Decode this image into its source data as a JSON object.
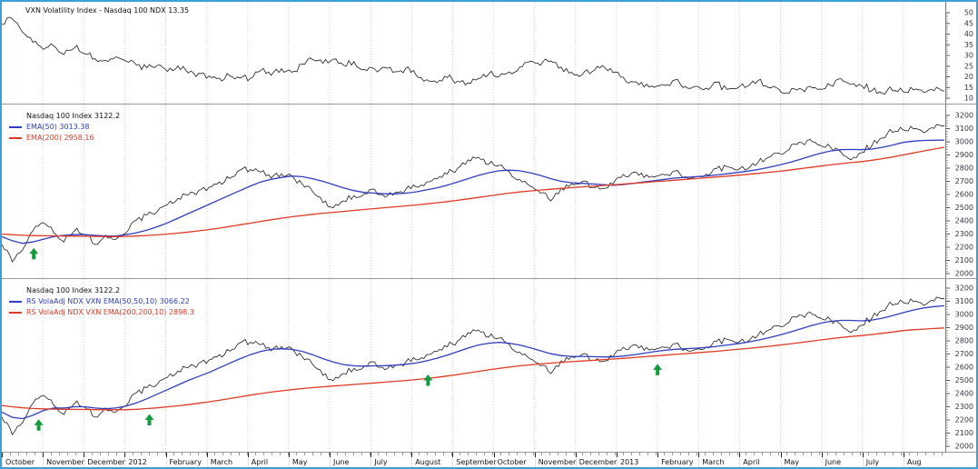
{
  "colors": {
    "border": "#3aa2d8",
    "grid": "#c8cbd0",
    "price": "#1a1a1a",
    "ema_fast": "#2e3fc0",
    "ema_slow": "#e03a25",
    "signal": "#169a3e",
    "axis_text": "#333344"
  },
  "x_axis": {
    "labels": [
      "October",
      "November",
      "December",
      "2012",
      "February",
      "March",
      "April",
      "May",
      "June",
      "July",
      "August",
      "September",
      "October",
      "November",
      "December",
      "2013",
      "February",
      "March",
      "April",
      "May",
      "June",
      "July",
      "Aug"
    ]
  },
  "chart_data": [
    {
      "id": "vxn-volatility",
      "type": "line",
      "title": "VXN Volatility Index - Nasdaq 100 NDX 13.35",
      "ylim": [
        10,
        50
      ],
      "yticks": [
        50,
        45,
        40,
        35,
        30,
        25,
        20,
        15,
        10
      ],
      "ytick_minor": 1,
      "grid": "vertical-dotted",
      "legend_position": "top-left",
      "series": [
        {
          "name": "VXN Volatility Index",
          "label": "VXN Volatility Index - Nasdaq 100 NDX 13.35",
          "color": "#1a1a1a",
          "style": "price",
          "values": [
            45,
            48,
            41,
            36,
            33,
            35,
            31,
            34,
            31,
            29,
            27,
            30,
            28,
            25,
            24,
            26,
            23,
            25,
            22,
            21,
            20,
            19,
            21,
            19,
            20,
            23,
            21,
            24,
            22,
            26,
            28,
            27,
            29,
            26,
            27,
            24,
            23,
            25,
            22,
            24,
            21,
            19,
            18,
            20,
            18,
            17,
            19,
            22,
            20,
            22,
            25,
            27,
            26,
            28,
            24,
            22,
            21,
            23,
            25,
            22,
            19,
            17,
            16,
            15,
            16,
            18,
            15,
            16,
            15,
            17,
            14,
            15,
            16,
            18,
            15,
            14,
            13,
            14,
            15,
            14,
            16,
            19,
            17,
            16,
            14,
            13,
            14,
            13,
            14,
            13.5,
            14,
            13.35
          ]
        }
      ]
    },
    {
      "id": "ndx-ema",
      "type": "line",
      "title": "Nasdaq 100 Index 3122.2",
      "ylim": [
        2000,
        3200
      ],
      "yticks": [
        3200,
        3100,
        3000,
        2900,
        2800,
        2700,
        2600,
        2500,
        2400,
        2300,
        2200,
        2100,
        2000
      ],
      "ytick_minor": 20,
      "grid": "vertical-dotted",
      "legend_position": "top-left",
      "series": [
        {
          "name": "Nasdaq 100 Index",
          "label": "Nasdaq 100 Index 3122.2",
          "color": "#1a1a1a",
          "style": "price",
          "values": [
            2230,
            2100,
            2180,
            2320,
            2390,
            2320,
            2250,
            2330,
            2300,
            2230,
            2280,
            2270,
            2320,
            2400,
            2440,
            2480,
            2530,
            2570,
            2600,
            2620,
            2650,
            2690,
            2730,
            2780,
            2800,
            2770,
            2730,
            2760,
            2740,
            2680,
            2620,
            2550,
            2510,
            2560,
            2590,
            2615,
            2630,
            2590,
            2610,
            2640,
            2660,
            2700,
            2730,
            2760,
            2800,
            2860,
            2880,
            2840,
            2820,
            2770,
            2720,
            2660,
            2620,
            2560,
            2640,
            2680,
            2700,
            2660,
            2640,
            2680,
            2740,
            2760,
            2740,
            2730,
            2750,
            2770,
            2730,
            2740,
            2760,
            2790,
            2810,
            2790,
            2800,
            2840,
            2880,
            2910,
            2950,
            2990,
            3010,
            2970,
            2960,
            2920,
            2870,
            2920,
            2980,
            3040,
            3080,
            3090,
            3100,
            3080,
            3110,
            3122
          ]
        },
        {
          "name": "EMA(50)",
          "label": "EMA(50) 3013.38",
          "color": "#2e3fc0",
          "style": "line",
          "values": [
            2280,
            2250,
            2230,
            2240,
            2260,
            2280,
            2290,
            2295,
            2295,
            2290,
            2285,
            2285,
            2295,
            2310,
            2330,
            2355,
            2385,
            2420,
            2455,
            2490,
            2525,
            2560,
            2595,
            2630,
            2665,
            2695,
            2715,
            2730,
            2740,
            2735,
            2720,
            2700,
            2675,
            2650,
            2630,
            2615,
            2610,
            2605,
            2605,
            2610,
            2620,
            2635,
            2650,
            2670,
            2695,
            2720,
            2745,
            2765,
            2780,
            2785,
            2780,
            2765,
            2745,
            2720,
            2700,
            2690,
            2685,
            2680,
            2675,
            2670,
            2675,
            2685,
            2695,
            2705,
            2715,
            2725,
            2730,
            2735,
            2740,
            2748,
            2757,
            2767,
            2777,
            2790,
            2805,
            2822,
            2842,
            2865,
            2890,
            2912,
            2930,
            2940,
            2942,
            2940,
            2945,
            2958,
            2975,
            2995,
            3005,
            3010,
            3012,
            3013
          ]
        },
        {
          "name": "EMA(200)",
          "label": "EMA(200) 2958.16",
          "color": "#e03a25",
          "style": "line",
          "values": [
            2300,
            2295,
            2290,
            2288,
            2287,
            2286,
            2285,
            2284,
            2283,
            2282,
            2281,
            2281,
            2282,
            2285,
            2289,
            2294,
            2300,
            2307,
            2315,
            2324,
            2334,
            2345,
            2357,
            2370,
            2383,
            2396,
            2408,
            2420,
            2431,
            2441,
            2450,
            2458,
            2465,
            2472,
            2479,
            2486,
            2493,
            2500,
            2507,
            2514,
            2521,
            2529,
            2537,
            2546,
            2556,
            2567,
            2578,
            2589,
            2600,
            2610,
            2619,
            2627,
            2634,
            2640,
            2646,
            2652,
            2658,
            2663,
            2668,
            2673,
            2679,
            2685,
            2691,
            2697,
            2703,
            2709,
            2715,
            2721,
            2727,
            2733,
            2739,
            2746,
            2753,
            2760,
            2768,
            2776,
            2785,
            2795,
            2805,
            2815,
            2825,
            2834,
            2842,
            2850,
            2860,
            2872,
            2885,
            2900,
            2915,
            2930,
            2945,
            2958
          ]
        }
      ],
      "signals": [
        {
          "shape": "up-arrow",
          "color": "#169a3e",
          "month": 0.78,
          "value": 2195
        }
      ]
    },
    {
      "id": "ndx-rs-volaadj",
      "type": "line",
      "title": "Nasdaq 100 Index 3122.2",
      "ylim": [
        2000,
        3200
      ],
      "yticks": [
        3200,
        3100,
        3000,
        2900,
        2800,
        2700,
        2600,
        2500,
        2400,
        2300,
        2200,
        2100,
        2000
      ],
      "ytick_minor": 20,
      "grid": "vertical-dotted",
      "legend_position": "top-left",
      "series": [
        {
          "name": "Nasdaq 100 Index",
          "label": "Nasdaq 100 Index 3122.2",
          "color": "#1a1a1a",
          "style": "price",
          "values": [
            2230,
            2100,
            2180,
            2320,
            2390,
            2320,
            2250,
            2330,
            2300,
            2230,
            2280,
            2270,
            2320,
            2400,
            2440,
            2480,
            2530,
            2570,
            2600,
            2620,
            2650,
            2690,
            2730,
            2780,
            2800,
            2770,
            2730,
            2760,
            2740,
            2680,
            2620,
            2550,
            2510,
            2560,
            2590,
            2615,
            2630,
            2590,
            2610,
            2640,
            2660,
            2700,
            2730,
            2760,
            2800,
            2860,
            2880,
            2840,
            2820,
            2770,
            2720,
            2660,
            2620,
            2560,
            2640,
            2680,
            2700,
            2660,
            2640,
            2680,
            2740,
            2760,
            2740,
            2730,
            2750,
            2770,
            2730,
            2740,
            2760,
            2790,
            2810,
            2790,
            2800,
            2840,
            2880,
            2910,
            2950,
            2990,
            3010,
            2970,
            2960,
            2920,
            2870,
            2920,
            2980,
            3040,
            3080,
            3090,
            3100,
            3080,
            3110,
            3122
          ]
        },
        {
          "name": "RS VolaAdj NDX VXN EMA(50,50,10)",
          "label": "RS VolaAdj NDX VXN EMA(50,50,10) 3066.22",
          "color": "#2e3fc0",
          "style": "line",
          "values": [
            2260,
            2220,
            2210,
            2235,
            2270,
            2290,
            2290,
            2300,
            2300,
            2290,
            2285,
            2290,
            2305,
            2330,
            2360,
            2395,
            2430,
            2465,
            2500,
            2530,
            2560,
            2595,
            2630,
            2665,
            2695,
            2720,
            2735,
            2740,
            2735,
            2720,
            2695,
            2665,
            2640,
            2620,
            2610,
            2608,
            2610,
            2612,
            2615,
            2622,
            2632,
            2648,
            2668,
            2692,
            2718,
            2745,
            2768,
            2782,
            2788,
            2782,
            2768,
            2748,
            2725,
            2702,
            2688,
            2682,
            2682,
            2680,
            2678,
            2678,
            2684,
            2694,
            2706,
            2718,
            2728,
            2736,
            2740,
            2744,
            2750,
            2758,
            2768,
            2778,
            2790,
            2805,
            2822,
            2842,
            2864,
            2888,
            2912,
            2933,
            2948,
            2955,
            2955,
            2952,
            2958,
            2972,
            2992,
            3014,
            3034,
            3050,
            3060,
            3066
          ]
        },
        {
          "name": "RS VolaAdj NDX VXN EMA(200,200,10)",
          "label": "RS VolaAdj NDX VXN EMA(200,200,10) 2898.3",
          "color": "#e03a25",
          "style": "line",
          "values": [
            2310,
            2300,
            2292,
            2287,
            2284,
            2282,
            2281,
            2280,
            2279,
            2278,
            2277,
            2277,
            2278,
            2281,
            2286,
            2292,
            2299,
            2307,
            2316,
            2326,
            2337,
            2349,
            2362,
            2375,
            2388,
            2400,
            2411,
            2421,
            2430,
            2438,
            2445,
            2451,
            2457,
            2463,
            2469,
            2475,
            2481,
            2487,
            2493,
            2499,
            2506,
            2514,
            2523,
            2533,
            2544,
            2556,
            2568,
            2580,
            2591,
            2601,
            2610,
            2618,
            2625,
            2631,
            2637,
            2642,
            2647,
            2652,
            2657,
            2662,
            2667,
            2673,
            2679,
            2685,
            2691,
            2697,
            2703,
            2709,
            2715,
            2721,
            2728,
            2735,
            2742,
            2750,
            2758,
            2767,
            2776,
            2786,
            2796,
            2806,
            2816,
            2825,
            2833,
            2840,
            2848,
            2857,
            2867,
            2878,
            2884,
            2889,
            2894,
            2898
          ]
        }
      ],
      "signals": [
        {
          "shape": "up-arrow",
          "color": "#169a3e",
          "month": 0.9,
          "value": 2205
        },
        {
          "shape": "up-arrow",
          "color": "#169a3e",
          "month": 3.6,
          "value": 2245
        },
        {
          "shape": "up-arrow",
          "color": "#169a3e",
          "month": 10.4,
          "value": 2545
        },
        {
          "shape": "up-arrow",
          "color": "#169a3e",
          "month": 16.0,
          "value": 2625
        }
      ]
    }
  ]
}
